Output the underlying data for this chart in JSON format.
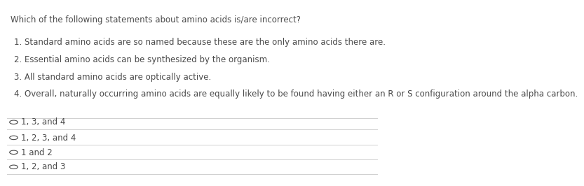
{
  "bg_color": "#ffffff",
  "text_color": "#4a4a4a",
  "question": "Which of the following statements about amino acids is/are incorrect?",
  "statements": [
    "1. Standard amino acids are so named because these are the only amino acids there are.",
    "2. Essential amino acids can be synthesized by the organism.",
    "3. All standard amino acids are optically active.",
    "4. Overall, naturally occurring amino acids are equally likely to be found having either an R or S configuration around the alpha carbon."
  ],
  "options": [
    "1, 3, and 4",
    "1, 2, 3, and 4",
    "1 and 2",
    "1, 2, and 3"
  ],
  "question_fontsize": 8.5,
  "statement_fontsize": 8.5,
  "option_fontsize": 8.5,
  "line_color": "#d0d0d0",
  "circle_color": "#4a4a4a"
}
